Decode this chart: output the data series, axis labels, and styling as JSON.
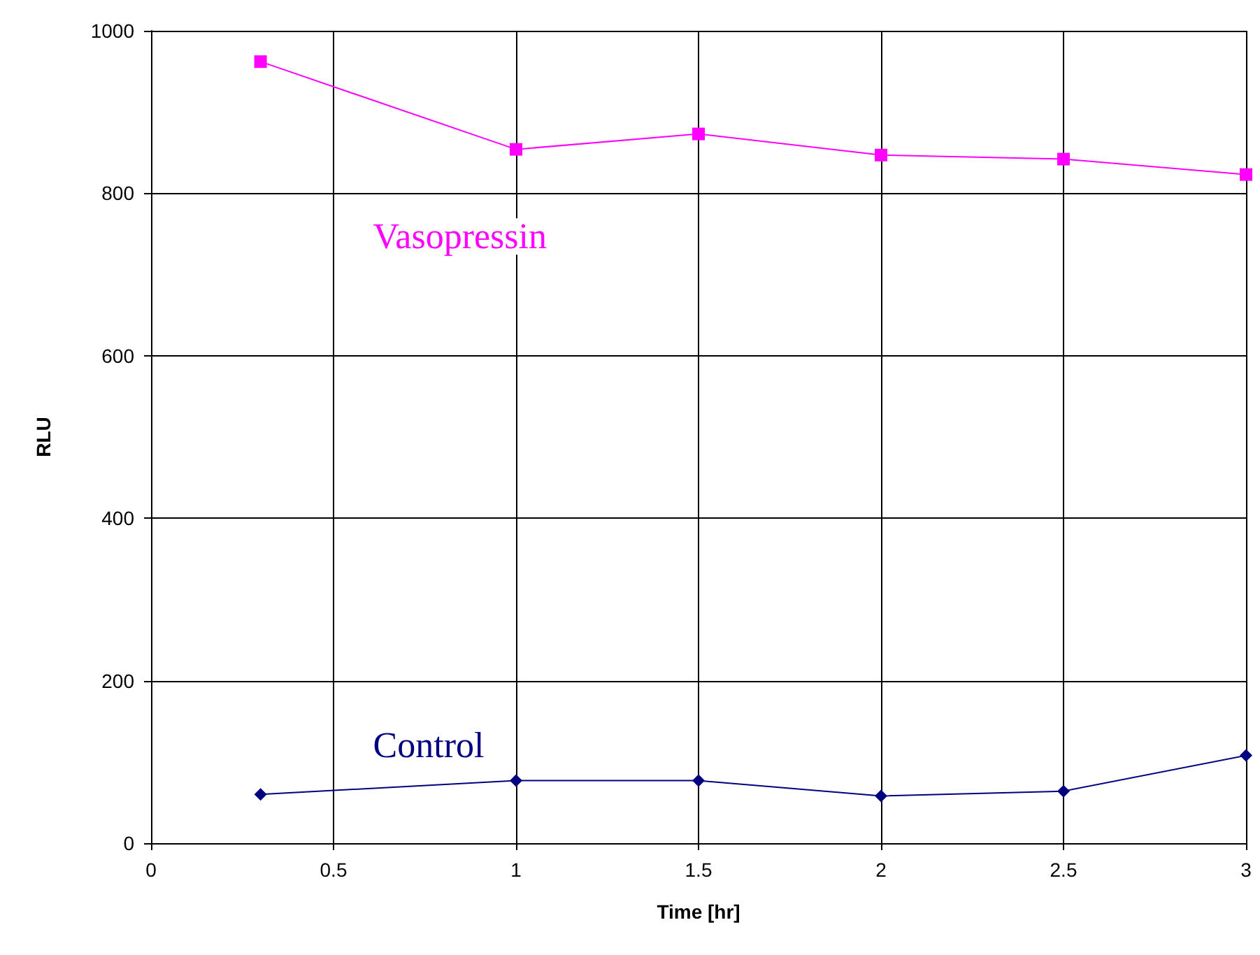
{
  "chart_data": {
    "type": "line",
    "xlabel": "Time [hr]",
    "ylabel": "RLU",
    "xlim": [
      0,
      3
    ],
    "xticks": [
      0,
      0.5,
      1,
      1.5,
      2,
      2.5,
      3
    ],
    "ylim": [
      0,
      1000
    ],
    "yticks": [
      0,
      200,
      400,
      600,
      800,
      1000
    ],
    "grid": true,
    "legend": false,
    "series": [
      {
        "name": "Vasopressin",
        "color": "#ff00ff",
        "marker": "square",
        "x": [
          0.3,
          1,
          1.5,
          2,
          2.5,
          3
        ],
        "values": [
          962,
          854,
          873,
          847,
          842,
          823
        ]
      },
      {
        "name": "Control",
        "color": "#000080",
        "marker": "diamond",
        "x": [
          0.3,
          1,
          1.5,
          2,
          2.5,
          3
        ],
        "values": [
          60,
          77,
          77,
          58,
          64,
          108
        ]
      }
    ]
  }
}
